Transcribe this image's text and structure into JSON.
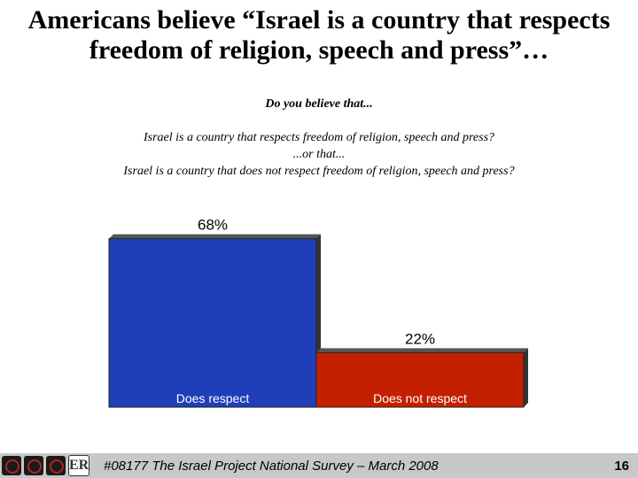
{
  "title": {
    "line1": "Americans believe “Israel is a country that respects",
    "line2": "freedom of religion, speech and press”…"
  },
  "question": {
    "lead": "Do you believe that...",
    "option1": "Israel is a country that respects freedom of religion, speech and press?",
    "or": "...or that...",
    "option2": "Israel is a country that does not respect freedom of religion, speech and press?"
  },
  "chart_data": {
    "type": "bar",
    "categories": [
      "Does respect",
      "Does not respect"
    ],
    "values": [
      68,
      22
    ],
    "value_labels": [
      "68%",
      "22%"
    ],
    "colors": [
      "#1f3fb8",
      "#c42000"
    ],
    "ylim": [
      0,
      100
    ]
  },
  "footer": {
    "logos": [
      "logo-1-icon",
      "logo-2-icon",
      "logo-3-icon",
      "logo-er-icon"
    ],
    "er_text": "ER",
    "source": "#08177 The Israel Project National Survey – March 2008",
    "page_number": "16"
  }
}
